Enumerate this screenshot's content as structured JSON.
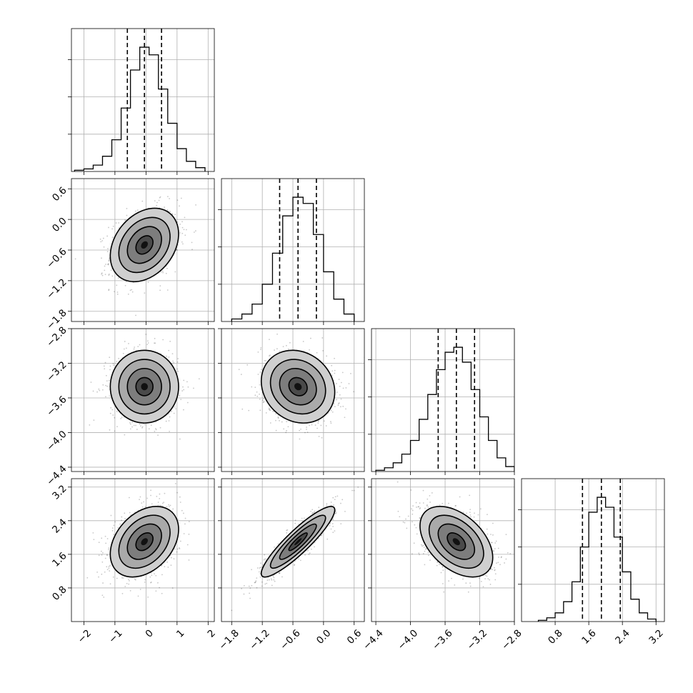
{
  "chart_data": {
    "type": "corner",
    "parameters": [
      {
        "range": [
          -2.4,
          2.2
        ],
        "ticks": [
          -2,
          -1,
          0,
          1,
          2
        ],
        "tick_labels": [
          "−2",
          "−1",
          "0",
          "1",
          "2"
        ],
        "mean": -0.05,
        "sd": 0.55,
        "quantiles": [
          -0.6,
          -0.05,
          0.5
        ],
        "hist_bins": [
          -2.3,
          -2.0,
          -1.7,
          -1.4,
          -1.1,
          -0.8,
          -0.5,
          -0.2,
          0.1,
          0.4,
          0.7,
          1.0,
          1.3,
          1.6,
          1.9
        ],
        "hist_counts": [
          1,
          2,
          5,
          12,
          25,
          50,
          80,
          98,
          92,
          65,
          38,
          18,
          8,
          3
        ]
      },
      {
        "range": [
          -2.0,
          0.8
        ],
        "ticks": [
          -1.8,
          -1.2,
          -0.6,
          0.0,
          0.6
        ],
        "tick_labels": [
          "−1.8",
          "−1.2",
          "−0.6",
          "0.0",
          "0.6"
        ],
        "mean": -0.5,
        "sd": 0.36,
        "quantiles": [
          -0.86,
          -0.5,
          -0.14
        ],
        "hist_bins": [
          -1.8,
          -1.6,
          -1.4,
          -1.2,
          -1.0,
          -0.8,
          -0.6,
          -0.4,
          -0.2,
          0.0,
          0.2,
          0.4,
          0.6
        ],
        "hist_counts": [
          2,
          6,
          14,
          30,
          55,
          85,
          100,
          95,
          70,
          40,
          18,
          6
        ]
      },
      {
        "range": [
          -4.45,
          -2.8
        ],
        "ticks": [
          -4.4,
          -4.0,
          -3.6,
          -3.2,
          -2.8
        ],
        "tick_labels": [
          "−4.4",
          "−4.0",
          "−3.6",
          "−3.2",
          "−2.8"
        ],
        "mean": -3.47,
        "sd": 0.21,
        "quantiles": [
          -3.68,
          -3.47,
          -3.26
        ],
        "hist_bins": [
          -4.4,
          -4.3,
          -4.2,
          -4.1,
          -4.0,
          -3.9,
          -3.8,
          -3.7,
          -3.6,
          -3.5,
          -3.4,
          -3.3,
          -3.2,
          -3.1,
          -3.0,
          -2.9,
          -2.8
        ],
        "hist_counts": [
          1,
          3,
          7,
          14,
          25,
          42,
          62,
          82,
          96,
          100,
          88,
          66,
          44,
          25,
          11,
          4
        ]
      },
      {
        "range": [
          0.0,
          3.4
        ],
        "ticks": [
          0.8,
          1.6,
          2.4,
          3.2
        ],
        "tick_labels": [
          "0.8",
          "1.6",
          "2.4",
          "3.2"
        ],
        "mean": 1.9,
        "sd": 0.42,
        "quantiles": [
          1.45,
          1.9,
          2.35
        ],
        "hist_bins": [
          0.4,
          0.6,
          0.8,
          1.0,
          1.2,
          1.4,
          1.6,
          1.8,
          2.0,
          2.2,
          2.4,
          2.6,
          2.8,
          3.0,
          3.2
        ],
        "hist_counts": [
          1,
          3,
          7,
          16,
          32,
          60,
          88,
          100,
          92,
          68,
          40,
          18,
          7,
          2
        ]
      }
    ],
    "correlations": [
      [
        1,
        0.3,
        0.0,
        0.35
      ],
      [
        0.3,
        1,
        -0.15,
        0.9
      ],
      [
        0.0,
        -0.15,
        1,
        -0.45
      ],
      [
        0.35,
        0.9,
        -0.45,
        1
      ]
    ],
    "contour_levels_sigma": [
      0.5,
      1.0,
      1.5,
      2.0
    ],
    "grid": true,
    "title": "",
    "xlabel": "",
    "ylabel": ""
  }
}
